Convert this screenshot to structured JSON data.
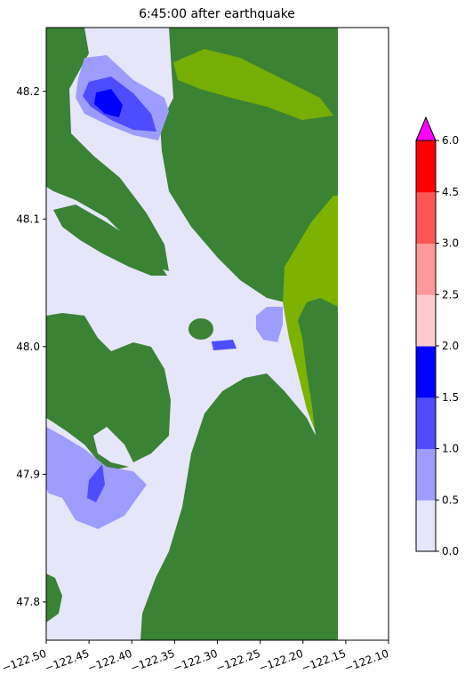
{
  "chart_data": {
    "type": "heatmap",
    "title": "6:45:00 after earthquake",
    "xlabel": "",
    "ylabel": "",
    "xlim": [
      -122.5,
      -122.1
    ],
    "ylim": [
      47.77,
      48.25
    ],
    "x_ticks": [
      -122.5,
      -122.45,
      -122.4,
      -122.35,
      -122.3,
      -122.25,
      -122.2,
      -122.15,
      -122.1
    ],
    "x_tick_labels": [
      "−122.50",
      "−122.45",
      "−122.40",
      "−122.35",
      "−122.30",
      "−122.25",
      "−122.20",
      "−122.15",
      "−122.10"
    ],
    "y_ticks": [
      47.8,
      47.9,
      48.0,
      48.1,
      48.2
    ],
    "y_tick_labels": [
      "47.8",
      "47.9",
      "48.0",
      "48.1",
      "48.2"
    ],
    "data_extent_east": -122.16,
    "grid": false,
    "colorbar": {
      "orientation": "vertical",
      "placement": "right",
      "extend": "max",
      "boundaries": [
        0.0,
        0.5,
        1.0,
        1.5,
        2.0,
        2.5,
        3.0,
        4.5,
        6.0
      ],
      "tick_labels": [
        "0.0",
        "0.5",
        "1.0",
        "1.5",
        "2.0",
        "2.5",
        "3.0",
        "4.5",
        "6.0"
      ],
      "colors": [
        "#e6e6fa",
        "#9d9dff",
        "#4d4dff",
        "#0000ff",
        "#ffcccc",
        "#ff9999",
        "#ff5555",
        "#ff0000"
      ],
      "over_color": "#ff00ff"
    },
    "land_colors": {
      "low": "#3a8234",
      "high": "#7db200"
    },
    "regions": [
      {
        "name": "water-main",
        "level_bin": 0
      },
      {
        "name": "water-north-bay",
        "level_bin": 1
      },
      {
        "name": "water-north-bay-core",
        "level_bin": 2
      },
      {
        "name": "water-north-bay-peak",
        "level_bin": 3
      },
      {
        "name": "water-southwest-bay",
        "level_bin": 1
      },
      {
        "name": "water-river-mouth",
        "level_bin": 1
      },
      {
        "name": "water-island-edge",
        "level_bin": 2
      }
    ]
  }
}
